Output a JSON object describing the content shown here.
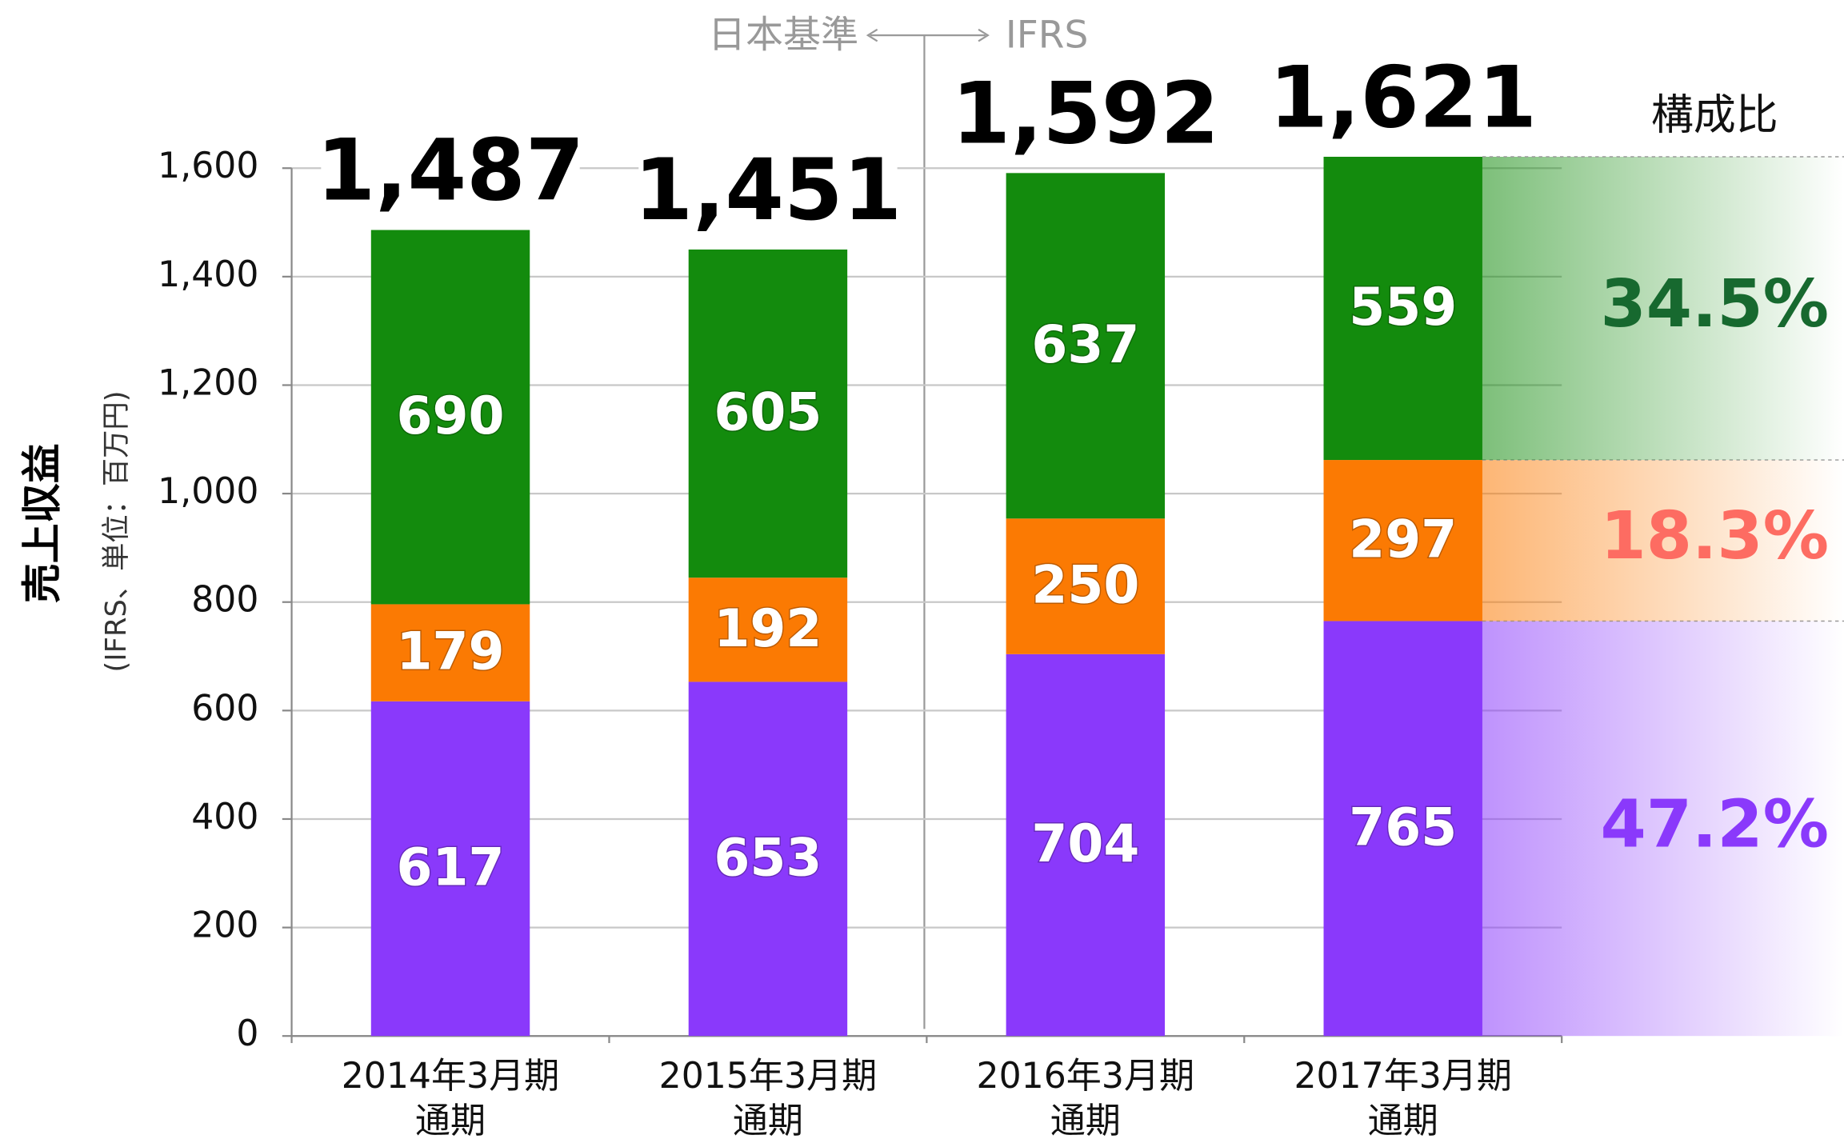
{
  "chart_data": {
    "type": "stacked_bar",
    "annotation_left": "日本基準",
    "annotation_right": "IFRS",
    "y_label": "売上収益",
    "y_sublabel": "(IFRS、単位：百万円)",
    "categories": [
      "2014年3月期\n通期",
      "2015年3月期\n通期",
      "2016年3月期\n通期",
      "2017年3月期\n通期"
    ],
    "series": [
      {
        "color": "#8a39fb",
        "values": [
          617,
          653,
          704,
          765
        ],
        "share": 47.2,
        "share_label": "47.2%",
        "share_color": "#8a39fb"
      },
      {
        "color": "#fb7a03",
        "values": [
          179,
          192,
          250,
          297
        ],
        "share": 18.3,
        "share_label": "18.3%",
        "share_color": "#fd6c62"
      },
      {
        "color": "#138b0d",
        "values": [
          690,
          605,
          637,
          559
        ],
        "share": 34.5,
        "share_label": "34.5%",
        "share_color": "#17692f"
      }
    ],
    "totals": [
      1487,
      1451,
      1592,
      1621
    ],
    "total_labels": [
      "1,487",
      "1,451",
      "1,592",
      "1,621"
    ],
    "share_title": "構成比",
    "ylim": [
      0,
      1600
    ],
    "yticks": [
      0,
      200,
      400,
      600,
      800,
      {
        "value": 1000,
        "label": "1,000"
      },
      {
        "value": 1200,
        "label": "1,200"
      },
      {
        "value": 1400,
        "label": "1,400"
      },
      {
        "value": 1600,
        "label": "1,600"
      }
    ],
    "grid": true
  }
}
